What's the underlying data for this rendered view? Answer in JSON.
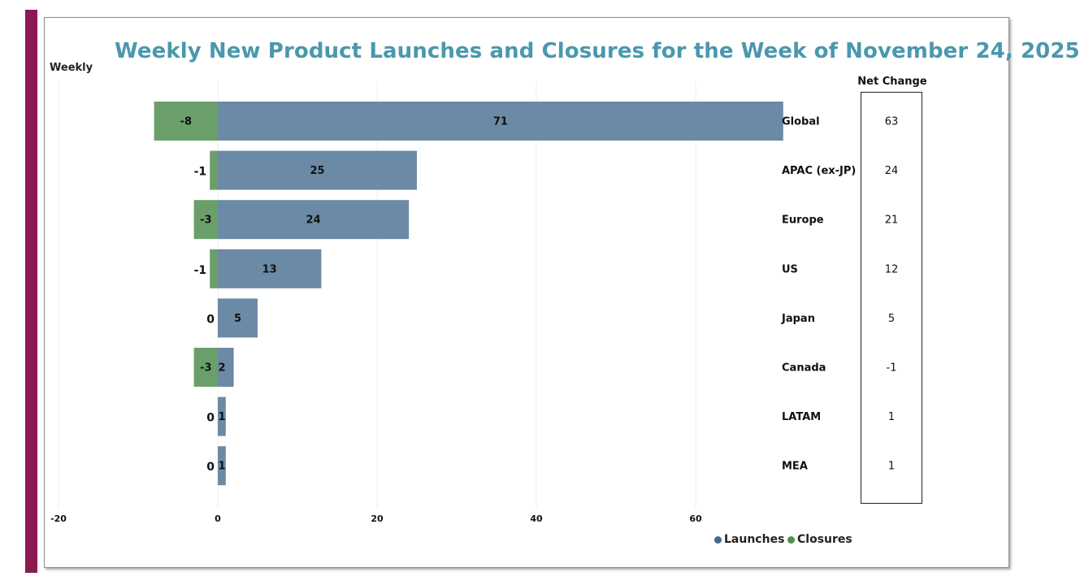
{
  "colors": {
    "launches": "#6b8aa5",
    "closures": "#6a9f6a",
    "title": "#4a98ad",
    "accent_bar": "#8a1a52",
    "grid": "#ececec"
  },
  "chart_data": {
    "type": "bar",
    "orientation": "horizontal",
    "stacked": true,
    "title": "Weekly New Product Launches and Closures for the Week of November 24, 2025",
    "ylabel": "Weekly",
    "net_change_header": "Net Change",
    "xlim": [
      -20,
      70
    ],
    "xticks": [
      -20,
      0,
      20,
      40,
      60
    ],
    "grid": true,
    "legend_position": "bottom-right",
    "categories": [
      "Global",
      "APAC (ex-JP)",
      "Europe",
      "US",
      "Japan",
      "Canada",
      "LATAM",
      "MEA"
    ],
    "series": [
      {
        "name": "Launches",
        "values": [
          71,
          25,
          24,
          13,
          5,
          2,
          1,
          1
        ]
      },
      {
        "name": "Closures",
        "values": [
          -8,
          -1,
          -3,
          -1,
          0,
          -3,
          0,
          0
        ]
      }
    ],
    "net_change": [
      63,
      24,
      21,
      12,
      5,
      -1,
      1,
      1
    ]
  }
}
